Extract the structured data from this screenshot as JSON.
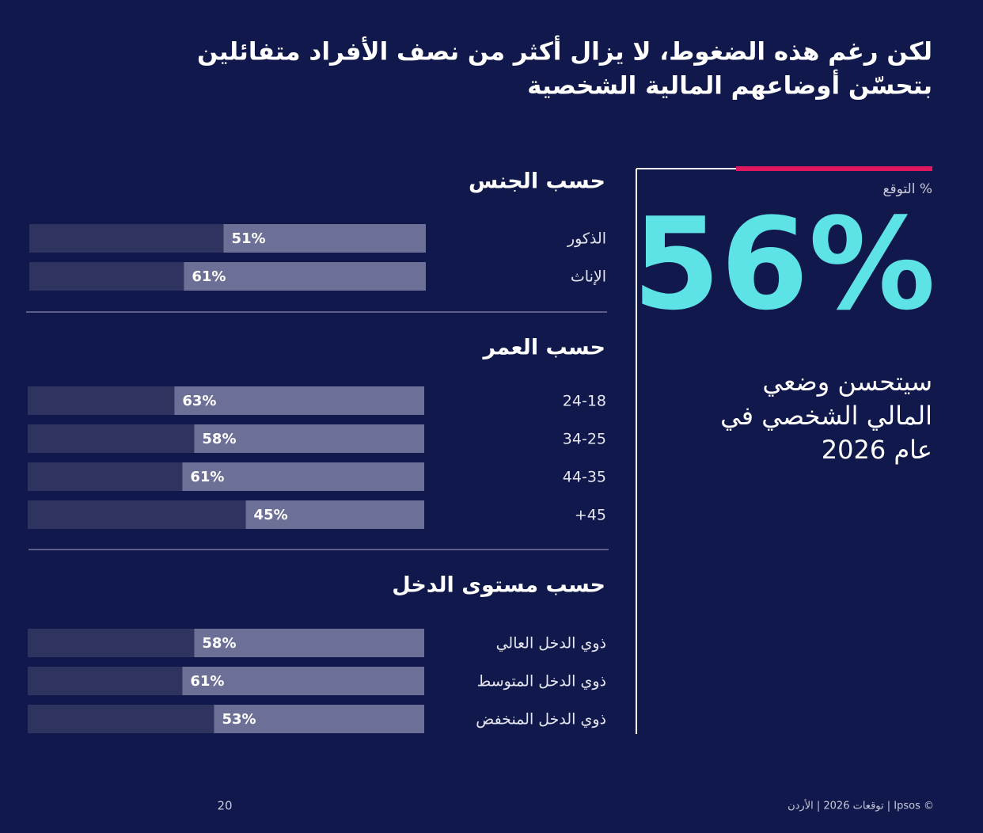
{
  "header": {
    "title": [
      "لكن رغم هذه الضغوط، لا يزال أكثر من نصف الأفراد متفائلين",
      "بتحسّن أوضاعهم المالية الشخصية"
    ]
  },
  "highlight": {
    "caption": "% التوقع",
    "figure": "56%",
    "text": [
      "سيتحسن وضعي",
      "المالي الشخصي في",
      "عام 2026"
    ]
  },
  "chart_data": [
    {
      "type": "bar",
      "orientation": "horizontal",
      "title": "حسب الجنس",
      "categories": [
        "الذكور",
        "الإناث"
      ],
      "values": [
        51,
        61
      ],
      "value_labels": [
        "51%",
        "61%"
      ],
      "xlim": [
        0,
        100
      ],
      "color": "#6c6f96",
      "track_color": "#2f335f"
    },
    {
      "type": "bar",
      "orientation": "horizontal",
      "title": "حسب العمر",
      "categories": [
        "24-18",
        "34-25",
        "44-35",
        "+45"
      ],
      "values": [
        63,
        58,
        61,
        45
      ],
      "value_labels": [
        "63%",
        "58%",
        "61%",
        "45%"
      ],
      "xlim": [
        0,
        100
      ],
      "color": "#6c6f96",
      "track_color": "#2f335f"
    },
    {
      "type": "bar",
      "orientation": "horizontal",
      "title": "حسب مستوى الدخل",
      "categories": [
        "ذوي الدخل العالي",
        "ذوي الدخل المتوسط",
        "ذوي الدخل المنخفض"
      ],
      "values": [
        58,
        61,
        53
      ],
      "value_labels": [
        "58%",
        "61%",
        "53%"
      ],
      "xlim": [
        0,
        100
      ],
      "color": "#6c6f96",
      "track_color": "#2f335f"
    }
  ],
  "footer": {
    "page": "20",
    "credit": "© Ipsos | توقعات 2026 | الأردن"
  }
}
